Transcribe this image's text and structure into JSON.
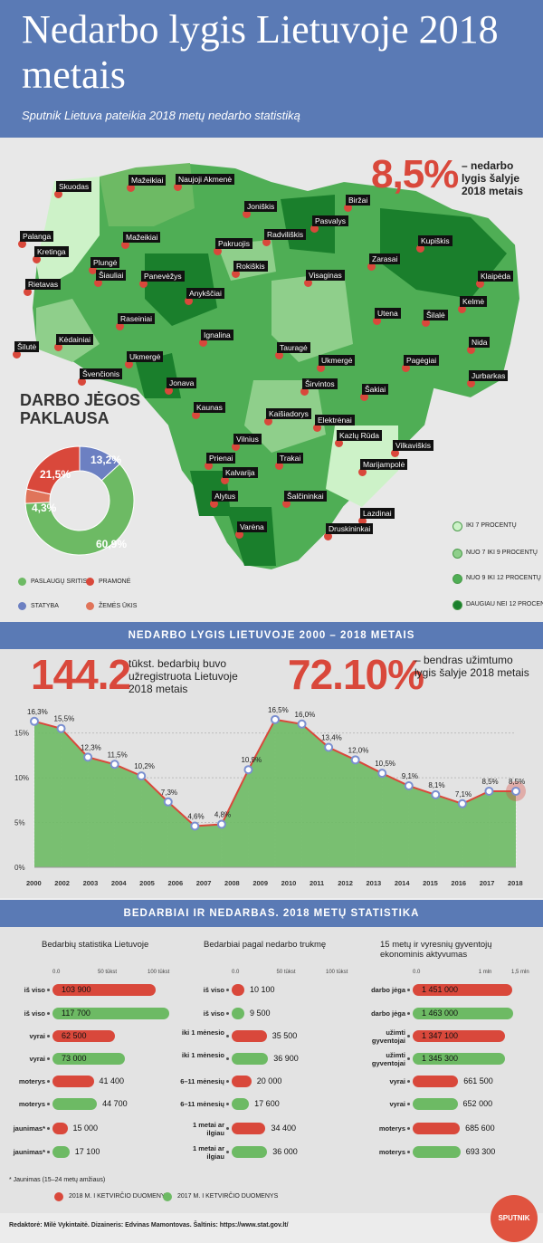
{
  "title": "Nedarbo lygis Lietuvoje 2018 metais",
  "subtitle": "Sputnik Lietuva pateikia 2018 metų nedarbo statistiką",
  "map": {
    "headline_value": "8,5%",
    "headline_text": "– nedarbo lygis šalyje 2018 metais",
    "legend": [
      "IKI 7 PROCENTŲ",
      "NUO 7 IKI 9 PROCENTŲ",
      "NUO 9 IKI 12 PROCENTŲ",
      "DAUGIAU NEI 12 PROCENTŲ"
    ],
    "legend_colors": [
      "#cdf2c8",
      "#8fcf8b",
      "#4fae55",
      "#1a7f2c"
    ],
    "cities": [
      "Skuodas",
      "Mažeikiai",
      "Naujoji Akmenė",
      "Joniškis",
      "Biržai",
      "Pasvalys",
      "Palanga",
      "Kretinga",
      "Mažeikiai",
      "Plungė",
      "Šiauliai",
      "Pakruojis",
      "Radviliškis",
      "Rokiškis",
      "Kupiškis",
      "Zarasai",
      "Klaipėda",
      "Rietavas",
      "Panevėžys",
      "Visaginas",
      "Kelmė",
      "Anykščiai",
      "Utena",
      "Šilalė",
      "Raseiniai",
      "Ignalina",
      "Nida",
      "Šilutė",
      "Kėdainiai",
      "Tauragė",
      "Ukmergė",
      "Ukmergė",
      "Pagėgiai",
      "Švenčionis",
      "Jurbarkas",
      "Jonava",
      "Širvintos",
      "Šakiai",
      "Kaunas",
      "Kaišiadorys",
      "Elektrėnai",
      "Kazlų Rūda",
      "Vilnius",
      "Vilkaviškis",
      "Prienai",
      "Trakai",
      "Marijampolė",
      "Kalvarija",
      "Alytus",
      "Šalčininkai",
      "Lazdinai",
      "Varėna",
      "Druskininkai"
    ]
  },
  "donut": {
    "title": "DARBO JĖGOS PAKLAUSA",
    "slices": [
      {
        "label": "PASLAUGŲ SRITIS",
        "value": 60.9,
        "text": "60,9%",
        "color": "#6dba64"
      },
      {
        "label": "STATYBA",
        "value": 13.2,
        "text": "13,2%",
        "color": "#6c80c2"
      },
      {
        "label": "PRAMONĖ",
        "value": 21.5,
        "text": "21,5%",
        "color": "#d9483b"
      },
      {
        "label": "ŽEMĖS ŪKIS",
        "value": 4.3,
        "text": "4,3%",
        "color": "#e0745a"
      }
    ]
  },
  "section2": {
    "band": "NEDARBO LYGIS LIETUVOJE 2000 – 2018 METAIS",
    "stat1_value": "144.2",
    "stat1_text": "tūkst. bedarbių buvo užregistruota Lietuvoje 2018 metais",
    "stat2_value": "72.10%",
    "stat2_text": "– bendras užimtumo lygis šalyje 2018 metais"
  },
  "chart_data": {
    "type": "area",
    "x": [
      2000,
      2001,
      2002,
      2003,
      2004,
      2005,
      2006,
      2007,
      2008,
      2009,
      2010,
      2011,
      2012,
      2013,
      2014,
      2015,
      2016,
      2017,
      2018
    ],
    "y": [
      16.3,
      15.5,
      12.3,
      11.5,
      10.2,
      7.3,
      4.6,
      4.8,
      10.9,
      16.5,
      16.0,
      13.4,
      12.0,
      10.5,
      9.1,
      8.1,
      7.1,
      8.5,
      8.5
    ],
    "point_labels": [
      "16,3%",
      "15,5%",
      "12,3%",
      "11,5%",
      "10,2%",
      "7,3%",
      "4,6%",
      "4,8%",
      "10,9%",
      "16,5%",
      "16,0%",
      "13,4%",
      "12,0%",
      "10,5%",
      "9,1%",
      "8,1%",
      "7,1%",
      "8,5%",
      "8,5%"
    ],
    "xticks": [
      "2000",
      "2002",
      "2003",
      "2004",
      "2005",
      "2006",
      "2007",
      "2008",
      "2009",
      "2010",
      "2011",
      "2012",
      "2013",
      "2014",
      "2015",
      "2016",
      "2017",
      "2018"
    ],
    "yticks": [
      "0%",
      "5%",
      "10%",
      "15%"
    ],
    "ylim": [
      0,
      18
    ]
  },
  "section3": {
    "band": "BEDARBIAI IR NEDARBAS. 2018 METŲ STATISTIKA",
    "footnote": "* Jaunimas (15–24 metų amžiaus)",
    "legend": [
      "2018 M. I KETVIRČIO DUOMENYS",
      "2017 M. I KETVIRČIO DUOMENYS"
    ],
    "colors": {
      "red": "#d9483b",
      "green": "#6dba64"
    },
    "columns": [
      {
        "title": "Bedarbių statistika Lietuvoje",
        "scale": [
          "0.0",
          "50 tūkst",
          "100 tūkst"
        ],
        "max": 100000,
        "rows": [
          {
            "label": "iš viso",
            "value": 103900,
            "text": "103 900",
            "color": "red"
          },
          {
            "label": "iš viso",
            "value": 117700,
            "text": "117 700",
            "color": "green"
          },
          {
            "label": "vyrai",
            "value": 62500,
            "text": "62 500",
            "color": "red"
          },
          {
            "label": "vyrai",
            "value": 73000,
            "text": "73 000",
            "color": "green"
          },
          {
            "label": "moterys",
            "value": 41400,
            "text": "41 400",
            "color": "red"
          },
          {
            "label": "moterys",
            "value": 44700,
            "text": "44 700",
            "color": "green"
          },
          {
            "label": "jaunimas*",
            "value": 15000,
            "text": "15 000",
            "color": "red"
          },
          {
            "label": "jaunimas*",
            "value": 17100,
            "text": "17 100",
            "color": "green"
          }
        ]
      },
      {
        "title": "Bedarbiai pagal nedarbo trukmę",
        "scale": [
          "0.0",
          "50 tūkst",
          "100 tūkst"
        ],
        "max": 100000,
        "rows": [
          {
            "label": "iš viso",
            "value": 10100,
            "text": "10 100",
            "color": "red"
          },
          {
            "label": "iš viso",
            "value": 9500,
            "text": "9 500",
            "color": "green"
          },
          {
            "label": "iki 1 mėnesio",
            "value": 35500,
            "text": "35 500",
            "color": "red"
          },
          {
            "label": "iki 1 mėnesio",
            "value": 36900,
            "text": "36 900",
            "color": "green"
          },
          {
            "label": "6–11 mėnesių",
            "value": 20000,
            "text": "20 000",
            "color": "red"
          },
          {
            "label": "6–11 mėnesių",
            "value": 17600,
            "text": "17 600",
            "color": "green"
          },
          {
            "label": "1 metai ar ilgiau",
            "value": 34400,
            "text": "34 400",
            "color": "red"
          },
          {
            "label": "1 metai ar ilgiau",
            "value": 36000,
            "text": "36 000",
            "color": "green"
          }
        ]
      },
      {
        "title": "15 metų ir vyresnių gyventojų ekonominis aktyvumas",
        "scale": [
          "0.0",
          "1 mln",
          "1,5 mln"
        ],
        "max": 1500000,
        "rows": [
          {
            "label": "darbo jėga",
            "value": 1451000,
            "text": "1 451 000",
            "color": "red"
          },
          {
            "label": "darbo jėga",
            "value": 1463000,
            "text": "1 463 000",
            "color": "green"
          },
          {
            "label": "užimti gyventojai",
            "value": 1347100,
            "text": "1 347 100",
            "color": "red"
          },
          {
            "label": "užimti gyventojai",
            "value": 1345300,
            "text": "1 345 300",
            "color": "green"
          },
          {
            "label": "vyrai",
            "value": 661500,
            "text": "661 500",
            "color": "red"
          },
          {
            "label": "vyrai",
            "value": 652000,
            "text": "652 000",
            "color": "green"
          },
          {
            "label": "moterys",
            "value": 685600,
            "text": "685 600",
            "color": "red"
          },
          {
            "label": "moterys",
            "value": 693300,
            "text": "693 300",
            "color": "green"
          }
        ]
      }
    ]
  },
  "footer": {
    "text": "Redaktorė: Milė Vykintaitė.   Dizaineris: Edvinas Mamontovas.   Šaltinis: https://www.stat.gov.lt/",
    "logo": "SPUTNIK"
  }
}
